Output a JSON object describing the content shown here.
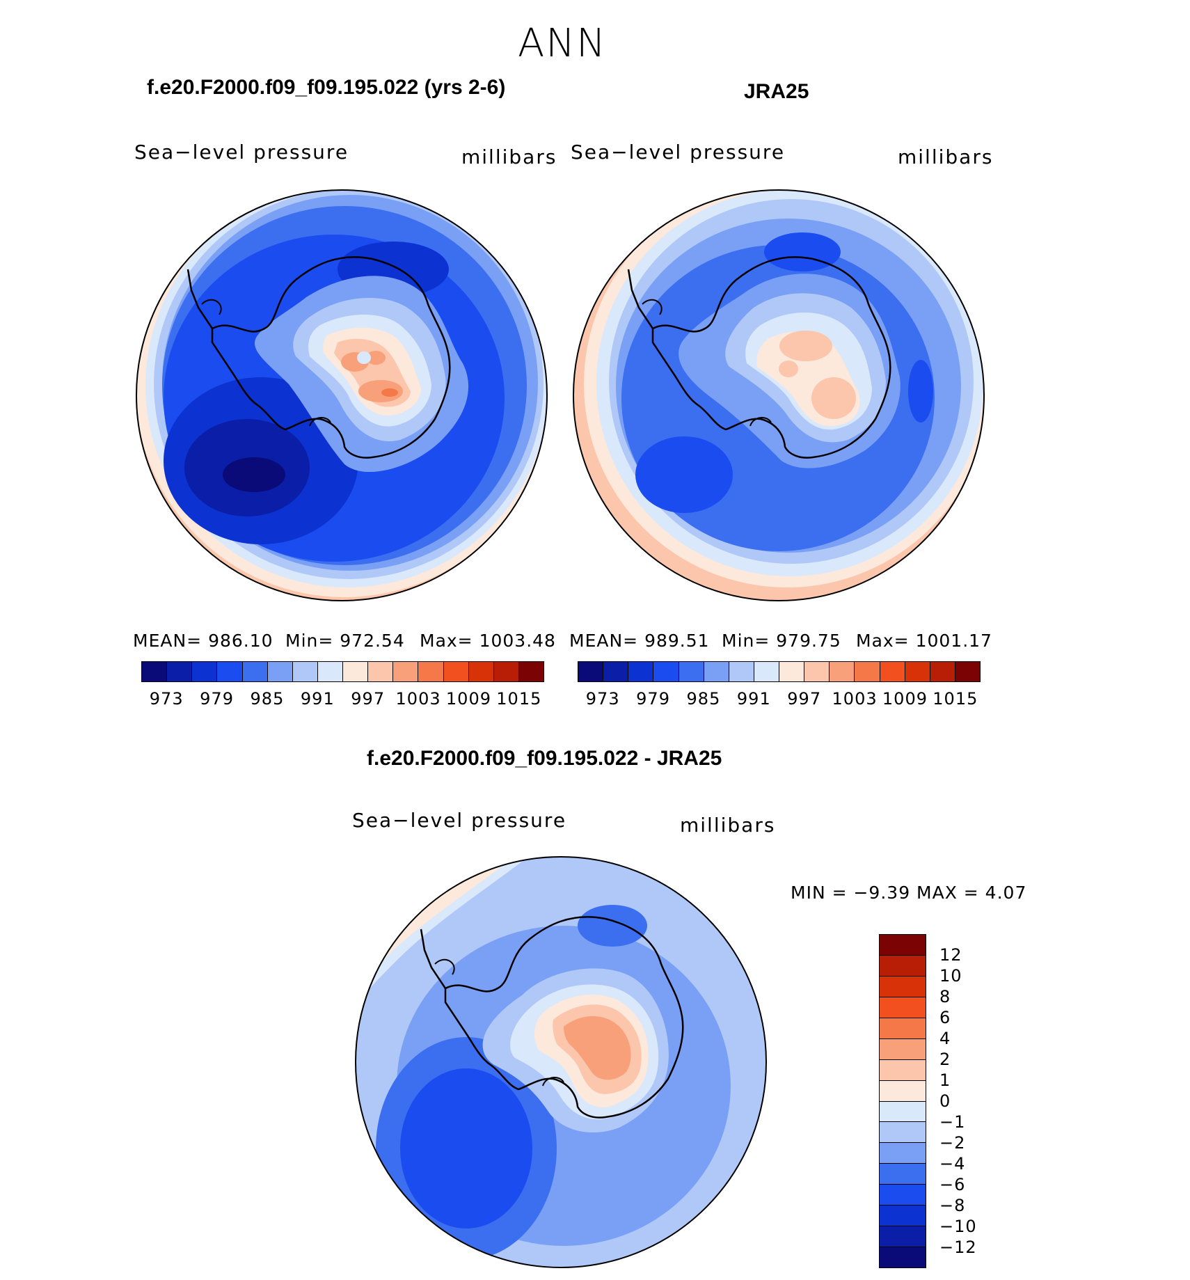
{
  "figure": {
    "title": "ANN"
  },
  "panels": [
    {
      "title": "f.e20.F2000.f09_f09.195.022 (yrs 2-6)",
      "left_label": "Sea−level pressure",
      "right_label": "millibars",
      "stats": {
        "mean": "MEAN=  986.10",
        "min": "Min=  972.54",
        "max": "Max=  1003.48"
      }
    },
    {
      "title": "JRA25",
      "left_label": "Sea−level pressure",
      "right_label": "millibars",
      "stats": {
        "mean": "MEAN=  989.51",
        "min": "Min=  979.75",
        "max": "Max=  1001.17"
      }
    },
    {
      "title": "f.e20.F2000.f09_f09.195.022 - JRA25",
      "left_label": "Sea−level pressure",
      "right_label": "millibars",
      "stats": {
        "minmax": "MIN =    −9.39  MAX =      4.07"
      }
    }
  ],
  "colorbar_abs": {
    "colors": [
      "#0a0a78",
      "#0a1ea8",
      "#0c32d2",
      "#1a4cf0",
      "#3c6ef0",
      "#7aa0f5",
      "#b0c8f8",
      "#dae8fb",
      "#fde8dc",
      "#fbc6ac",
      "#f8a07a",
      "#f57848",
      "#f2501e",
      "#d83208",
      "#b81e05",
      "#7c0303"
    ],
    "ticks": [
      "973",
      "979",
      "985",
      "991",
      "997",
      "1003",
      "1009",
      "1015"
    ]
  },
  "colorbar_diff": {
    "colors": [
      "#7c0303",
      "#b81e05",
      "#d83208",
      "#f2501e",
      "#f57848",
      "#f8a07a",
      "#fbc6ac",
      "#fde8dc",
      "#dae8fb",
      "#b0c8f8",
      "#7aa0f5",
      "#3c6ef0",
      "#1a4cf0",
      "#0c32d2",
      "#0a1ea8",
      "#0a0a78"
    ],
    "ticks": [
      "12",
      "10",
      "8",
      "6",
      "4",
      "2",
      "1",
      "0",
      "−1",
      "−2",
      "−4",
      "−6",
      "−8",
      "−10",
      "−12"
    ]
  },
  "map_legend": {
    "land_outline": "Antarctica coastline",
    "projection": "south polar stereographic"
  }
}
